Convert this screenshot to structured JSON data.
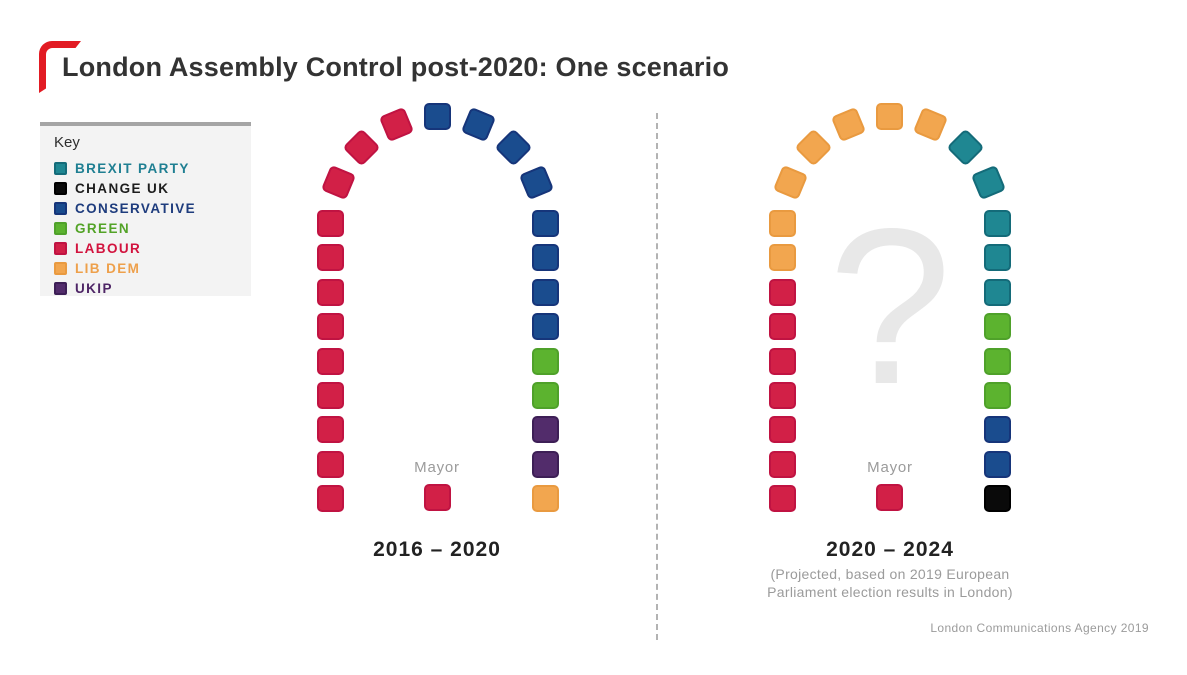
{
  "title": "London Assembly Control post-2020: One scenario",
  "credit": "London Communications Agency 2019",
  "colors": {
    "accent_red": "#E21B23",
    "title_text": "#333333",
    "muted_text": "#9B9B9B",
    "question_mark": "#E8E8E8",
    "divider": "#B3B3B3",
    "key_background": "#F3F3F3",
    "key_top_border": "#A5A5A5"
  },
  "key": {
    "heading": "Key",
    "items": [
      {
        "party": "brexit",
        "label": "BREXIT PARTY",
        "text_color": "#1F7F92"
      },
      {
        "party": "changeuk",
        "label": "CHANGE UK",
        "text_color": "#1D1D1D"
      },
      {
        "party": "conservative",
        "label": "CONSERVATIVE",
        "text_color": "#1E3C7D"
      },
      {
        "party": "green",
        "label": "GREEN",
        "text_color": "#53A327"
      },
      {
        "party": "labour",
        "label": "LABOUR",
        "text_color": "#D2133E"
      },
      {
        "party": "libdem",
        "label": "LIB DEM",
        "text_color": "#EEA04B"
      },
      {
        "party": "ukip",
        "label": "UKIP",
        "text_color": "#4E2566"
      }
    ]
  },
  "parties": {
    "brexit": {
      "name": "BREXIT PARTY",
      "fill": "#1F8792",
      "border": "#146B79"
    },
    "changeuk": {
      "name": "CHANGE UK",
      "fill": "#0A0A0A",
      "border": "#000000"
    },
    "conservative": {
      "name": "CONSERVATIVE",
      "fill": "#1A4C8E",
      "border": "#16357A"
    },
    "green": {
      "name": "GREEN",
      "fill": "#5CB32F",
      "border": "#4FA12A"
    },
    "labour": {
      "name": "LABOUR",
      "fill": "#D22047",
      "border": "#C01342"
    },
    "libdem": {
      "name": "LIB DEM",
      "fill": "#F2A64F",
      "border": "#E99A40"
    },
    "ukip": {
      "name": "UKIP",
      "fill": "#522C6B",
      "border": "#3D1F56"
    }
  },
  "chart_data": [
    {
      "type": "parliament-arch",
      "title": "2016 – 2020",
      "total_seats": 25,
      "mayor_label": "Mayor",
      "mayor_party": "labour",
      "composition": [
        {
          "party": "LABOUR",
          "seats": 12
        },
        {
          "party": "CONSERVATIVE",
          "seats": 8
        },
        {
          "party": "GREEN",
          "seats": 2
        },
        {
          "party": "UKIP",
          "seats": 2
        },
        {
          "party": "LIB DEM",
          "seats": 1
        }
      ],
      "seat_order_bottom_left_to_bottom_right": [
        "labour",
        "labour",
        "labour",
        "labour",
        "labour",
        "labour",
        "labour",
        "labour",
        "labour",
        "labour",
        "labour",
        "labour",
        "conservative",
        "conservative",
        "conservative",
        "conservative",
        "conservative",
        "conservative",
        "conservative",
        "conservative",
        "green",
        "green",
        "ukip",
        "ukip",
        "libdem"
      ]
    },
    {
      "type": "parliament-arch",
      "title": "2020 – 2024",
      "subtitle": "(Projected, based on 2019 European Parliament election results in London)",
      "overlay": "?",
      "total_seats": 25,
      "mayor_label": "Mayor",
      "mayor_party": "labour",
      "composition": [
        {
          "party": "LABOUR",
          "seats": 7
        },
        {
          "party": "LIB DEM",
          "seats": 7
        },
        {
          "party": "BREXIT PARTY",
          "seats": 5
        },
        {
          "party": "GREEN",
          "seats": 3
        },
        {
          "party": "CONSERVATIVE",
          "seats": 2
        },
        {
          "party": "CHANGE UK",
          "seats": 1
        }
      ],
      "seat_order_bottom_left_to_bottom_right": [
        "labour",
        "labour",
        "labour",
        "labour",
        "labour",
        "labour",
        "labour",
        "libdem",
        "libdem",
        "libdem",
        "libdem",
        "libdem",
        "libdem",
        "libdem",
        "brexit",
        "brexit",
        "brexit",
        "brexit",
        "brexit",
        "green",
        "green",
        "green",
        "conservative",
        "conservative",
        "changeuk"
      ]
    }
  ]
}
